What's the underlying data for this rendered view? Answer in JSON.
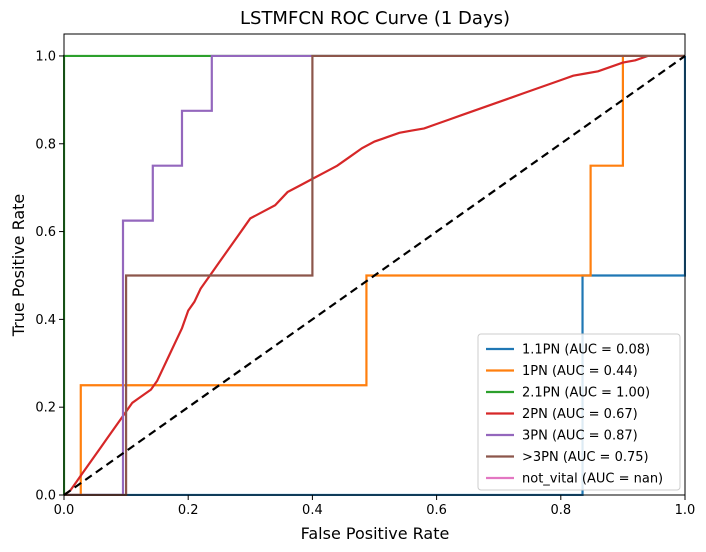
{
  "chart_data": {
    "type": "line",
    "title": "LSTMFCN ROC Curve (1 Days)",
    "xlabel": "False Positive Rate",
    "ylabel": "True Positive Rate",
    "xlim": [
      0.0,
      1.0
    ],
    "ylim": [
      0.0,
      1.05
    ],
    "x_ticks": [
      0.0,
      0.2,
      0.4,
      0.6,
      0.8,
      1.0
    ],
    "y_ticks": [
      0.0,
      0.2,
      0.4,
      0.6,
      0.8,
      1.0
    ],
    "x_tick_labels": [
      "0.0",
      "0.2",
      "0.4",
      "0.6",
      "0.8",
      "1.0"
    ],
    "y_tick_labels": [
      "0.0",
      "0.2",
      "0.4",
      "0.6",
      "0.8",
      "1.0"
    ],
    "grid": false,
    "legend_position": "lower-right",
    "series": [
      {
        "name": "1.1PN (AUC = 0.08)",
        "color": "#1f77b4",
        "x": [
          0.0,
          0.0,
          0.835,
          0.835,
          1.0,
          1.0
        ],
        "y": [
          0.0,
          0.0,
          0.0,
          0.5,
          0.5,
          1.0
        ]
      },
      {
        "name": "1PN (AUC = 0.44)",
        "color": "#ff7f0e",
        "x": [
          0.0,
          0.027,
          0.027,
          0.487,
          0.487,
          0.848,
          0.848,
          0.9,
          0.9,
          1.0
        ],
        "y": [
          0.0,
          0.0,
          0.25,
          0.25,
          0.5,
          0.5,
          0.75,
          0.75,
          1.0,
          1.0
        ]
      },
      {
        "name": "2.1PN (AUC = 1.00)",
        "color": "#2ca02c",
        "x": [
          0.0,
          0.0,
          1.0
        ],
        "y": [
          0.0,
          1.0,
          1.0
        ]
      },
      {
        "name": "2PN (AUC = 0.67)",
        "color": "#d62728",
        "x": [
          0.0,
          0.01,
          0.02,
          0.03,
          0.04,
          0.05,
          0.06,
          0.07,
          0.08,
          0.09,
          0.1,
          0.11,
          0.12,
          0.13,
          0.14,
          0.15,
          0.16,
          0.17,
          0.18,
          0.19,
          0.2,
          0.21,
          0.22,
          0.23,
          0.24,
          0.25,
          0.26,
          0.27,
          0.28,
          0.29,
          0.3,
          0.32,
          0.34,
          0.36,
          0.38,
          0.4,
          0.42,
          0.44,
          0.46,
          0.48,
          0.5,
          0.52,
          0.54,
          0.56,
          0.58,
          0.6,
          0.62,
          0.64,
          0.66,
          0.68,
          0.7,
          0.72,
          0.74,
          0.76,
          0.78,
          0.8,
          0.82,
          0.84,
          0.86,
          0.88,
          0.9,
          0.92,
          0.94
        ],
        "y": [
          0.0,
          0.01,
          0.03,
          0.05,
          0.07,
          0.09,
          0.11,
          0.13,
          0.15,
          0.17,
          0.19,
          0.21,
          0.22,
          0.23,
          0.24,
          0.26,
          0.29,
          0.32,
          0.35,
          0.38,
          0.42,
          0.44,
          0.47,
          0.49,
          0.51,
          0.53,
          0.55,
          0.57,
          0.59,
          0.61,
          0.63,
          0.645,
          0.66,
          0.69,
          0.705,
          0.72,
          0.735,
          0.75,
          0.77,
          0.79,
          0.805,
          0.815,
          0.825,
          0.83,
          0.835,
          0.845,
          0.855,
          0.865,
          0.875,
          0.885,
          0.895,
          0.905,
          0.915,
          0.925,
          0.935,
          0.945,
          0.955,
          0.96,
          0.965,
          0.975,
          0.985,
          0.99,
          1.0
        ]
      },
      {
        "name": "3PN (AUC = 0.87)",
        "color": "#9467bd",
        "x": [
          0.0,
          0.095,
          0.095,
          0.143,
          0.143,
          0.19,
          0.19,
          0.238,
          0.238,
          1.0
        ],
        "y": [
          0.0,
          0.0,
          0.625,
          0.625,
          0.75,
          0.75,
          0.875,
          0.875,
          1.0,
          1.0
        ]
      },
      {
        "name": ">3PN (AUC = 0.75)",
        "color": "#8c564b",
        "x": [
          0.0,
          0.1,
          0.1,
          0.4,
          0.4,
          1.0
        ],
        "y": [
          0.0,
          0.0,
          0.5,
          0.5,
          1.0,
          1.0
        ]
      },
      {
        "name": "not_vital (AUC = nan)",
        "color": "#e377c2",
        "x": [],
        "y": []
      }
    ],
    "reference_line": {
      "x": [
        0.0,
        1.0
      ],
      "y": [
        0.0,
        1.0
      ],
      "color": "#000000",
      "style": "dashed"
    }
  }
}
